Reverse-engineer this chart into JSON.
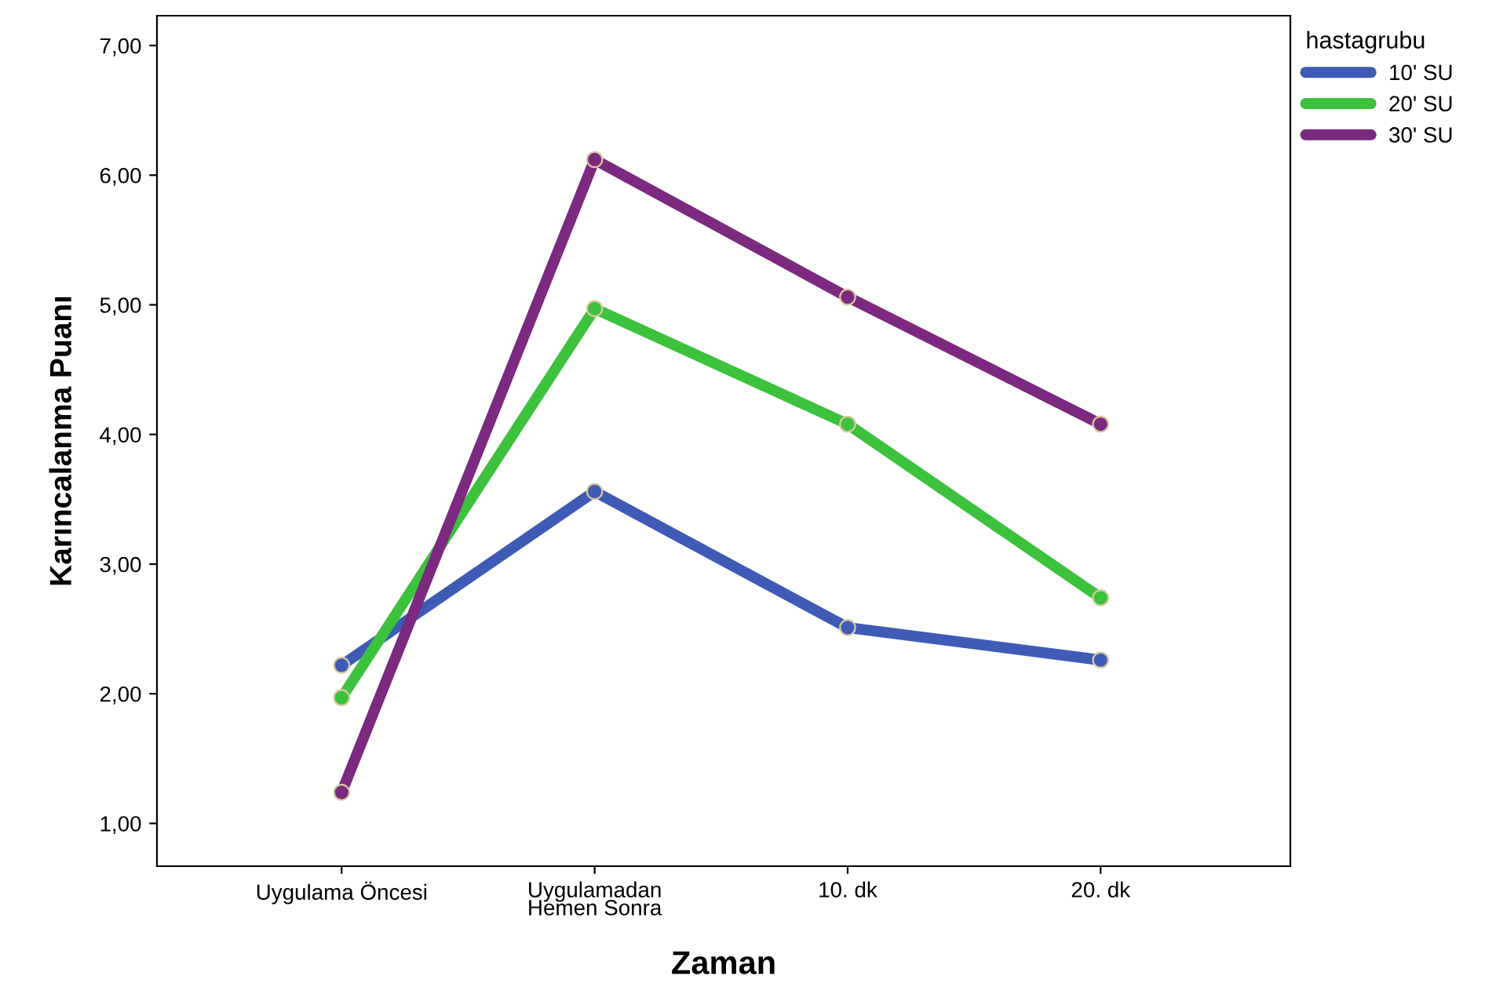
{
  "chart_data": {
    "type": "line",
    "xlabel": "Zaman",
    "ylabel": "Karıncalanma Puanı",
    "legend_title": "hastagrubu",
    "categories": [
      "Uygulama Öncesi",
      "Uygulamadan\nHemen Sonra",
      "10. dk",
      "20. dk"
    ],
    "series": [
      {
        "name": "10' SU",
        "color": "#3e5bb5",
        "values": [
          2.22,
          3.56,
          2.51,
          2.26
        ]
      },
      {
        "name": "20' SU",
        "color": "#3cc23c",
        "values": [
          1.97,
          4.97,
          4.08,
          2.74
        ]
      },
      {
        "name": "30' SU",
        "color": "#7b2a7f",
        "values": [
          1.24,
          6.12,
          5.06,
          4.08
        ]
      }
    ],
    "ylim": [
      0.67,
      7.23
    ],
    "yticks": [
      {
        "value": 1,
        "label": "1,00"
      },
      {
        "value": 2,
        "label": "2,00"
      },
      {
        "value": 3,
        "label": "3,00"
      },
      {
        "value": 4,
        "label": "4,00"
      },
      {
        "value": 5,
        "label": "5,00"
      },
      {
        "value": 6,
        "label": "6,00"
      },
      {
        "value": 7,
        "label": "7,00"
      }
    ],
    "grid": false,
    "legend": "top right",
    "marker": "circle",
    "line_style": "solid"
  }
}
